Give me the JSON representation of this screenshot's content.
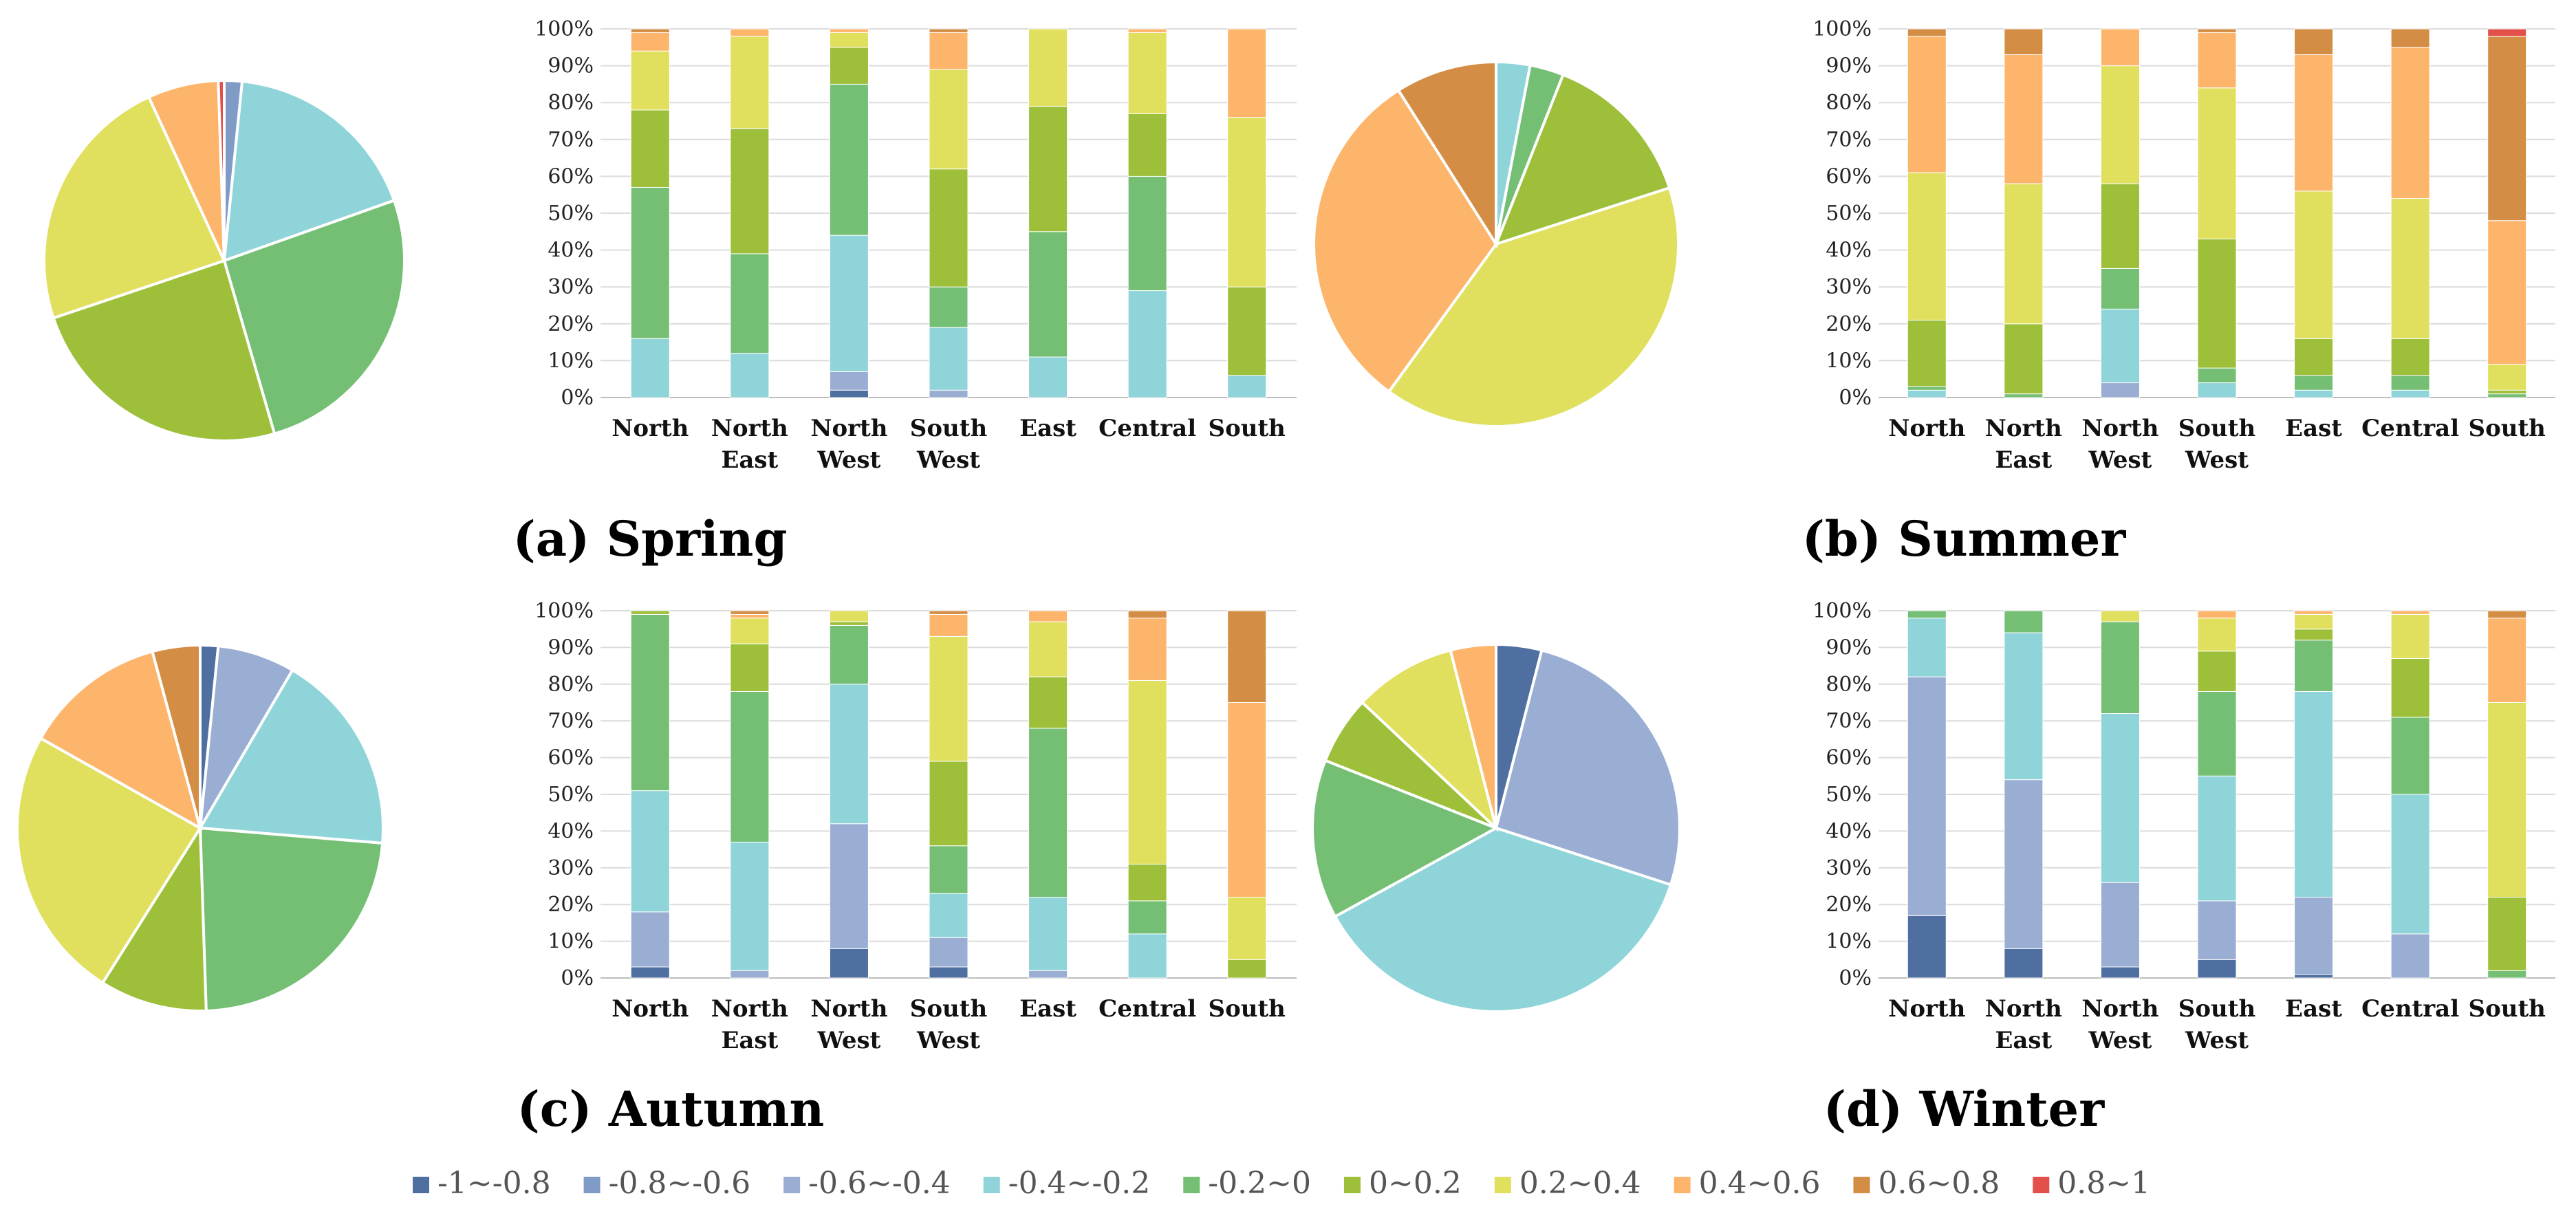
{
  "colors": [
    "#4e6fa0",
    "#7f9bc6",
    "#9aaed3",
    "#8fd4d9",
    "#74bf74",
    "#9dbf3a",
    "#e0df5e",
    "#fdb56c",
    "#d48d44",
    "#e3504a"
  ],
  "legend": [
    "-1~-0.8",
    "-0.8~-0.6",
    "-0.6~-0.4",
    "-0.4~-0.2",
    "-0.2~0",
    "0~0.2",
    "0.2~0.4",
    "0.4~0.6",
    "0.6~0.8",
    "0.8~1"
  ],
  "chart_data": [
    {
      "type": "bar",
      "stacked": "percent",
      "caption": "(a) Spring",
      "categories": [
        [
          "North"
        ],
        [
          "North",
          "East"
        ],
        [
          "North",
          "West"
        ],
        [
          "South",
          "West"
        ],
        [
          "East"
        ],
        [
          "Central"
        ],
        [
          "South"
        ]
      ],
      "y_ticks": [
        "0%",
        "10%",
        "20%",
        "30%",
        "40%",
        "50%",
        "60%",
        "70%",
        "80%",
        "90%",
        "100%"
      ],
      "values": [
        [
          0,
          0,
          0,
          16,
          41,
          21,
          16,
          5,
          1,
          0
        ],
        [
          0,
          0,
          0,
          12,
          27,
          34,
          25,
          2,
          0,
          0
        ],
        [
          2,
          0,
          5,
          37,
          41,
          10,
          4,
          1,
          0,
          0
        ],
        [
          0,
          0,
          2,
          17,
          11,
          32,
          27,
          10,
          1,
          0
        ],
        [
          0,
          0,
          0,
          11,
          34,
          34,
          21,
          0,
          0,
          0
        ],
        [
          0,
          0,
          0,
          29,
          31,
          17,
          22,
          1,
          0,
          0
        ],
        [
          0,
          0,
          0,
          6,
          0,
          24,
          46,
          24,
          0,
          0
        ]
      ],
      "pie": [
        0,
        1.5,
        0,
        17,
        24.5,
        23,
        22,
        6,
        0,
        0.5
      ]
    },
    {
      "type": "bar",
      "stacked": "percent",
      "caption": "(b) Summer",
      "categories": [
        [
          "North"
        ],
        [
          "North",
          "East"
        ],
        [
          "North",
          "West"
        ],
        [
          "South",
          "West"
        ],
        [
          "East"
        ],
        [
          "Central"
        ],
        [
          "South"
        ]
      ],
      "y_ticks": [
        "0%",
        "10%",
        "20%",
        "30%",
        "40%",
        "50%",
        "60%",
        "70%",
        "80%",
        "90%",
        "100%"
      ],
      "values": [
        [
          0,
          0,
          0,
          2,
          1,
          18,
          40,
          37,
          2,
          0
        ],
        [
          0,
          0,
          0,
          0,
          1,
          19,
          38,
          35,
          7,
          0
        ],
        [
          0,
          0,
          4,
          20,
          11,
          23,
          32,
          10,
          0,
          0
        ],
        [
          0,
          0,
          0,
          4,
          4,
          35,
          41,
          15,
          1,
          0
        ],
        [
          0,
          0,
          0,
          2,
          4,
          10,
          40,
          37,
          7,
          0
        ],
        [
          0,
          0,
          0,
          2,
          4,
          10,
          38,
          41,
          5,
          0
        ],
        [
          0,
          0,
          0,
          0,
          1,
          1,
          7,
          39,
          50,
          2
        ]
      ],
      "pie": [
        0,
        0,
        0,
        3,
        3,
        14,
        40,
        31,
        9,
        0
      ]
    },
    {
      "type": "bar",
      "stacked": "percent",
      "caption": "(c) Autumn",
      "categories": [
        [
          "North"
        ],
        [
          "North",
          "East"
        ],
        [
          "North",
          "West"
        ],
        [
          "South",
          "West"
        ],
        [
          "East"
        ],
        [
          "Central"
        ],
        [
          "South"
        ]
      ],
      "y_ticks": [
        "0%",
        "10%",
        "20%",
        "30%",
        "40%",
        "50%",
        "60%",
        "70%",
        "80%",
        "90%",
        "100%"
      ],
      "values": [
        [
          3,
          0,
          15,
          33,
          48,
          1,
          0,
          0,
          0,
          0
        ],
        [
          0,
          0,
          2,
          35,
          41,
          13,
          7,
          1,
          1,
          0
        ],
        [
          8,
          0,
          34,
          38,
          16,
          1,
          3,
          0,
          0,
          0
        ],
        [
          3,
          0,
          8,
          12,
          13,
          23,
          34,
          6,
          1,
          0
        ],
        [
          0,
          0,
          2,
          20,
          46,
          14,
          15,
          3,
          0,
          0
        ],
        [
          0,
          0,
          0,
          12,
          9,
          10,
          50,
          17,
          2,
          0
        ],
        [
          0,
          0,
          0,
          0,
          0,
          5,
          17,
          53,
          25,
          0
        ]
      ],
      "pie": [
        1.5,
        0,
        6.5,
        17,
        22,
        9,
        23,
        12,
        4,
        0
      ]
    },
    {
      "type": "bar",
      "stacked": "percent",
      "caption": "(d) Winter",
      "categories": [
        [
          "North"
        ],
        [
          "North",
          "East"
        ],
        [
          "North",
          "West"
        ],
        [
          "South",
          "West"
        ],
        [
          "East"
        ],
        [
          "Central"
        ],
        [
          "South"
        ]
      ],
      "y_ticks": [
        "0%",
        "10%",
        "20%",
        "30%",
        "40%",
        "50%",
        "60%",
        "70%",
        "80%",
        "90%",
        "100%"
      ],
      "values": [
        [
          17,
          0,
          65,
          16,
          2,
          0,
          0,
          0,
          0,
          0
        ],
        [
          8,
          0,
          46,
          40,
          6,
          0,
          0,
          0,
          0,
          0
        ],
        [
          3,
          0,
          23,
          46,
          25,
          0,
          3,
          0,
          0,
          0
        ],
        [
          5,
          0,
          16,
          34,
          23,
          11,
          9,
          2,
          0,
          0
        ],
        [
          1,
          0,
          21,
          56,
          14,
          3,
          4,
          1,
          0,
          0
        ],
        [
          0,
          0,
          12,
          38,
          21,
          16,
          12,
          1,
          0,
          0
        ],
        [
          0,
          0,
          0,
          0,
          2,
          20,
          53,
          23,
          2,
          0
        ]
      ],
      "pie": [
        4,
        0,
        26,
        37,
        14,
        6,
        9,
        4,
        0,
        0
      ]
    }
  ]
}
